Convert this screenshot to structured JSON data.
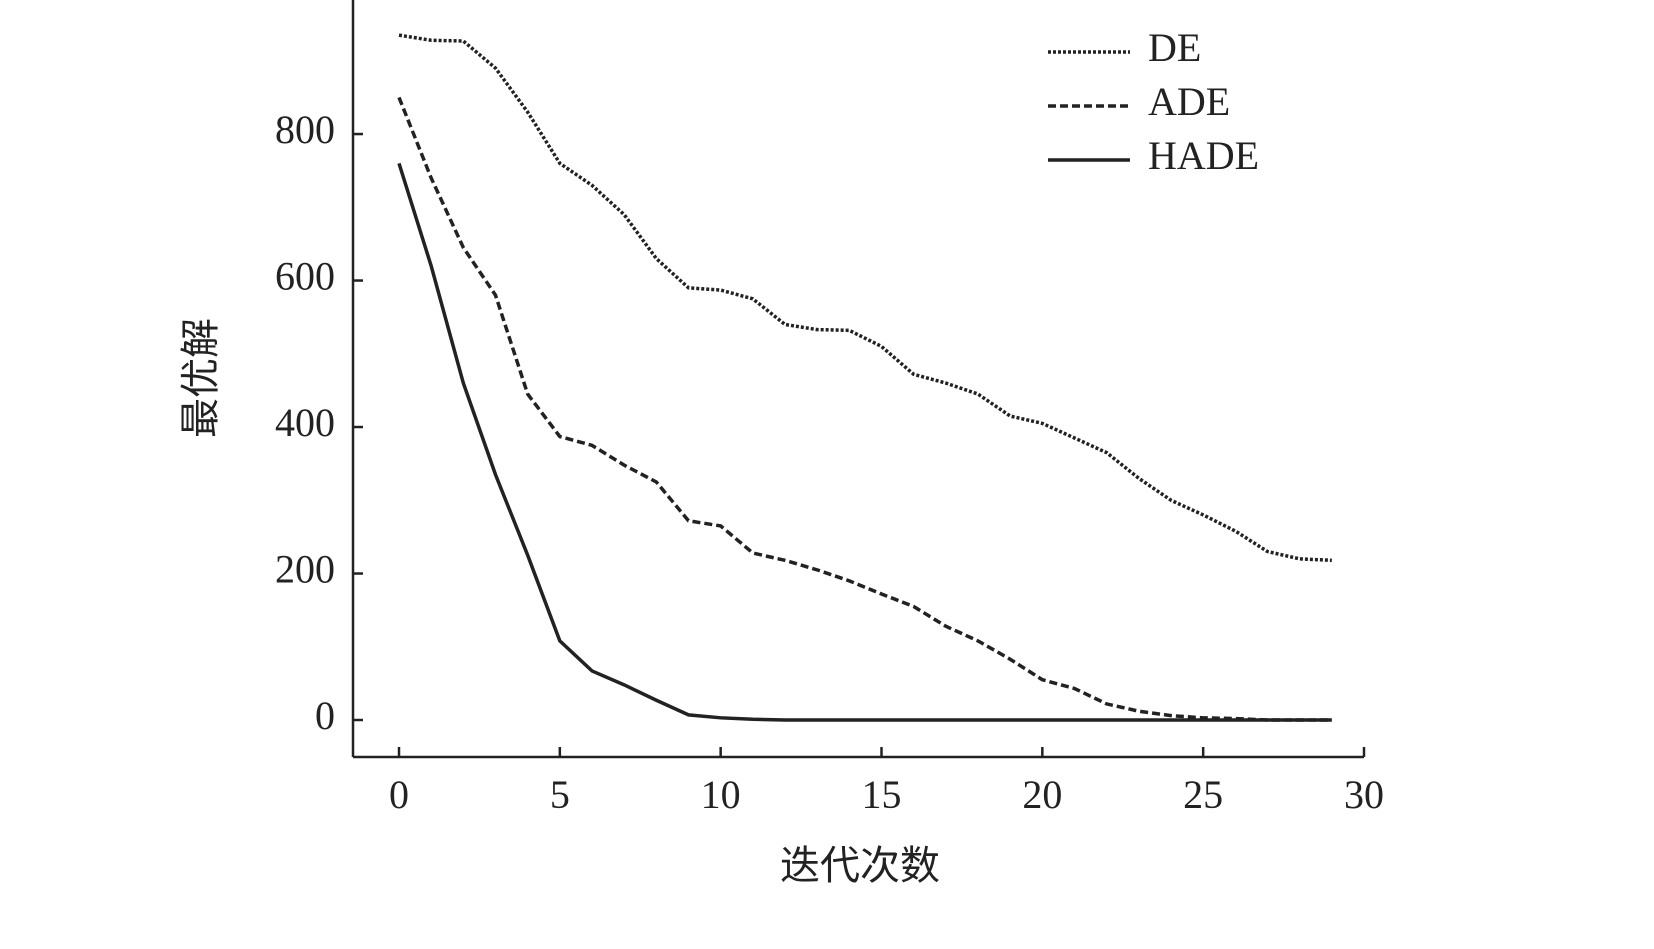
{
  "chart_data": {
    "type": "line",
    "x_label": "迭代次数",
    "y_label": "最优解",
    "x": [
      0,
      1,
      2,
      3,
      4,
      5,
      6,
      7,
      8,
      9,
      10,
      11,
      12,
      13,
      14,
      15,
      16,
      17,
      18,
      19,
      20,
      21,
      22,
      23,
      24,
      25,
      26,
      27,
      28,
      29
    ],
    "series": [
      {
        "name": "DE",
        "color": "#222222",
        "linestyle": "dotted",
        "values": [
          935,
          928,
          927,
          890,
          830,
          760,
          730,
          690,
          630,
          590,
          587,
          575,
          540,
          533,
          532,
          510,
          472,
          460,
          445,
          415,
          405,
          385,
          365,
          330,
          300,
          280,
          258,
          230,
          220,
          218
        ]
      },
      {
        "name": "ADE",
        "color": "#222222",
        "linestyle": "dashed",
        "values": [
          850,
          740,
          645,
          580,
          445,
          387,
          375,
          348,
          325,
          272,
          265,
          228,
          218,
          205,
          190,
          172,
          155,
          128,
          108,
          83,
          55,
          43,
          22,
          12,
          6,
          3,
          2,
          0,
          0,
          0
        ]
      },
      {
        "name": "HADE",
        "color": "#222222",
        "linestyle": "solid",
        "values": [
          760,
          620,
          460,
          335,
          225,
          108,
          67,
          48,
          27,
          7,
          3,
          1,
          0,
          0,
          0,
          0,
          0,
          0,
          0,
          0,
          0,
          0,
          0,
          0,
          0,
          0,
          0,
          0,
          0,
          0
        ]
      }
    ],
    "xlim": [
      -1.43,
      30
    ],
    "ylim": [
      -50.5,
      983
    ],
    "xticks": [
      0,
      5,
      10,
      15,
      20,
      25,
      30
    ],
    "yticks": [
      0,
      200,
      400,
      600,
      800
    ],
    "legend": "upper right"
  }
}
